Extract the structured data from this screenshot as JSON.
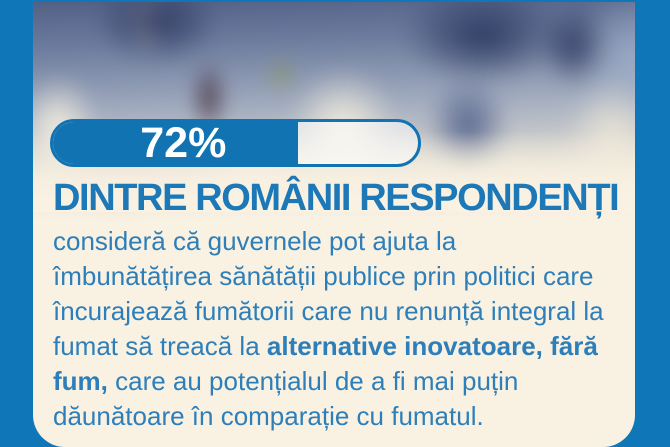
{
  "colors": {
    "frame_blue": "#0f76b8",
    "bar_blue": "#1173b2",
    "headline_blue": "#1d78b7",
    "body_blue": "#2e7fb9",
    "card_cream": "#f9f2e3",
    "bar_label_white": "#ffffff"
  },
  "progress": {
    "label": "72%",
    "percent": 72,
    "fill_percent_visual": 67
  },
  "headline": "DINTRE ROMÂNII RESPONDENȚI",
  "paragraph": {
    "segments": [
      {
        "text": "consideră că guvernele pot ajuta la îmbunătățirea sănătății publice prin politici care încurajează fumătorii care nu renunță integral la fumat să treacă la ",
        "bold": false
      },
      {
        "text": "alternative inovatoare, fără fum,",
        "bold": true
      },
      {
        "text": " care au potențialul de a fi mai puțin dăunătoare în comparație cu fumatul.",
        "bold": false
      }
    ]
  },
  "background_photo": {
    "description": "blurred street crowd scene in blue and cream tones fading into the card background"
  },
  "chart_data": {
    "type": "bar",
    "categories": [
      "Dintre românii respondenți"
    ],
    "values": [
      72
    ],
    "unit": "%",
    "title": "72% dintre românii respondenți",
    "xlim": [
      0,
      100
    ],
    "legend": "none",
    "grid": false
  }
}
